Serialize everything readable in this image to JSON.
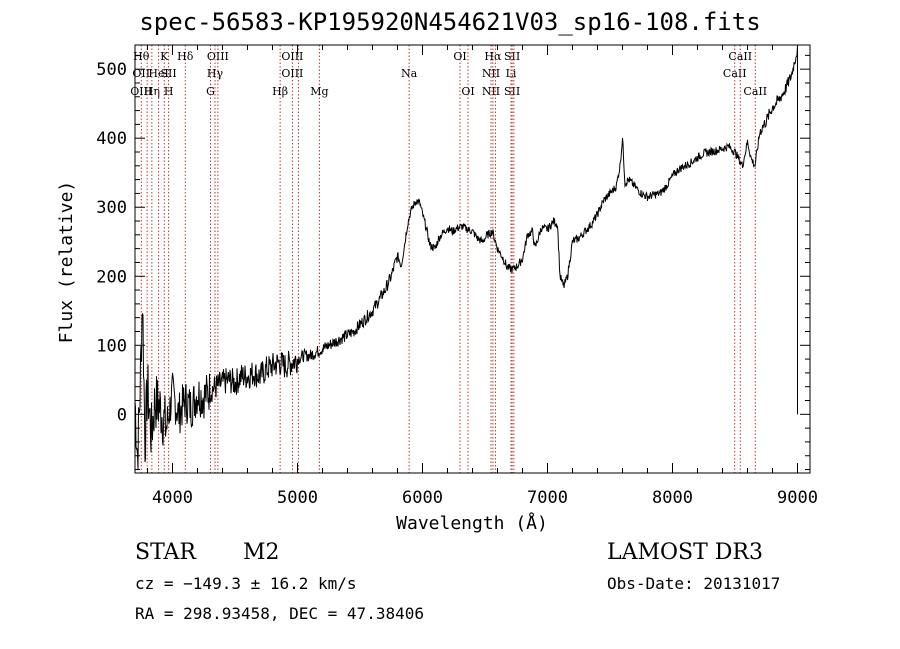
{
  "title": "spec-56583-KP195920N454621V03_sp16-108.fits",
  "info": {
    "class_label": "STAR",
    "subclass_label": "M2",
    "survey": "LAMOST DR3",
    "cz": "cz = −149.3 ± 16.2 km/s",
    "obs_date": "Obs-Date: 20131017",
    "coords": "RA = 298.93458, DEC =  47.38406"
  },
  "chart_data": {
    "type": "line",
    "title": "spec-56583-KP195920N454621V03_sp16-108.fits",
    "xlabel": "Wavelength (Å)",
    "ylabel": "Flux (relative)",
    "xlim": [
      3700,
      9100
    ],
    "ylim": [
      -85,
      535
    ],
    "xticks": [
      4000,
      5000,
      6000,
      7000,
      8000,
      9000
    ],
    "yticks": [
      0,
      100,
      200,
      300,
      400,
      500
    ],
    "series": [
      {
        "color": "#000000",
        "x": [
          3700,
          3720,
          3740,
          3760,
          3780,
          3800,
          3830,
          3860,
          3900,
          3950,
          4000,
          4050,
          4100,
          4150,
          4200,
          4250,
          4300,
          4350,
          4400,
          4450,
          4500,
          4550,
          4600,
          4650,
          4700,
          4750,
          4800,
          4850,
          4900,
          4950,
          5000,
          5050,
          5100,
          5150,
          5200,
          5250,
          5300,
          5350,
          5400,
          5450,
          5500,
          5550,
          5600,
          5650,
          5700,
          5750,
          5800,
          5830,
          5860,
          5880,
          5900,
          5920,
          5950,
          5980,
          6000,
          6030,
          6060,
          6100,
          6130,
          6160,
          6200,
          6240,
          6280,
          6320,
          6360,
          6400,
          6440,
          6480,
          6520,
          6560,
          6600,
          6640,
          6680,
          6720,
          6760,
          6800,
          6840,
          6880,
          6900,
          6950,
          7000,
          7050,
          7080,
          7100,
          7130,
          7160,
          7200,
          7250,
          7300,
          7350,
          7400,
          7450,
          7500,
          7550,
          7580,
          7600,
          7620,
          7650,
          7700,
          7750,
          7800,
          7850,
          7900,
          7950,
          8000,
          8050,
          8100,
          8150,
          8200,
          8250,
          8300,
          8350,
          8400,
          8450,
          8500,
          8530,
          8560,
          8600,
          8630,
          8660,
          8700,
          8750,
          8800,
          8850,
          8900,
          8950,
          9000
        ],
        "y": [
          20,
          -60,
          30,
          170,
          -40,
          40,
          -30,
          20,
          10,
          -20,
          30,
          0,
          20,
          10,
          30,
          25,
          35,
          40,
          45,
          50,
          45,
          55,
          55,
          60,
          55,
          65,
          70,
          75,
          70,
          75,
          80,
          85,
          85,
          90,
          95,
          100,
          105,
          110,
          115,
          120,
          130,
          140,
          150,
          165,
          180,
          200,
          230,
          215,
          250,
          275,
          290,
          300,
          310,
          305,
          290,
          270,
          245,
          240,
          255,
          262,
          270,
          265,
          270,
          272,
          268,
          265,
          255,
          250,
          260,
          265,
          240,
          228,
          212,
          210,
          215,
          225,
          260,
          265,
          240,
          270,
          268,
          280,
          275,
          200,
          185,
          200,
          250,
          255,
          265,
          275,
          290,
          310,
          320,
          330,
          360,
          400,
          335,
          340,
          330,
          320,
          315,
          318,
          320,
          330,
          345,
          355,
          360,
          365,
          372,
          378,
          380,
          382,
          385,
          388,
          380,
          370,
          360,
          395,
          370,
          360,
          410,
          425,
          445,
          455,
          470,
          490,
          530
        ]
      }
    ],
    "line_markers": [
      {
        "wl": 3750,
        "labels": [
          "Hθ",
          "OII",
          "OIII"
        ]
      },
      {
        "wl": 3797,
        "labels": [
          "",
          "",
          ""
        ]
      },
      {
        "wl": 3835,
        "labels": [
          "",
          "",
          "Hη"
        ]
      },
      {
        "wl": 3889,
        "labels": [
          "",
          "HeI",
          ""
        ]
      },
      {
        "wl": 3934,
        "labels": [
          "K",
          "",
          ""
        ]
      },
      {
        "wl": 3969,
        "labels": [
          "",
          "SII",
          "H"
        ]
      },
      {
        "wl": 4102,
        "labels": [
          "Hδ",
          "",
          ""
        ]
      },
      {
        "wl": 4304,
        "labels": [
          "",
          "",
          "G"
        ]
      },
      {
        "wl": 4340,
        "labels": [
          "",
          "Hγ",
          ""
        ]
      },
      {
        "wl": 4363,
        "labels": [
          "OIII",
          "",
          ""
        ]
      },
      {
        "wl": 4861,
        "labels": [
          "",
          "",
          "Hβ"
        ]
      },
      {
        "wl": 4959,
        "labels": [
          "OIII",
          "OIII",
          ""
        ]
      },
      {
        "wl": 5007,
        "labels": [
          "",
          "",
          ""
        ]
      },
      {
        "wl": 5175,
        "labels": [
          "",
          "",
          "Mg"
        ]
      },
      {
        "wl": 5893,
        "labels": [
          "",
          "Na",
          ""
        ]
      },
      {
        "wl": 6300,
        "labels": [
          "OI",
          "",
          ""
        ]
      },
      {
        "wl": 6364,
        "labels": [
          "",
          "",
          "OI"
        ]
      },
      {
        "wl": 6548,
        "labels": [
          "",
          "NII",
          "NII"
        ]
      },
      {
        "wl": 6563,
        "labels": [
          "Hα",
          "",
          ""
        ]
      },
      {
        "wl": 6583,
        "labels": [
          "",
          "",
          ""
        ]
      },
      {
        "wl": 6708,
        "labels": [
          "",
          "Li",
          ""
        ]
      },
      {
        "wl": 6717,
        "labels": [
          "SII",
          "",
          "SII"
        ]
      },
      {
        "wl": 6731,
        "labels": [
          "",
          "",
          ""
        ]
      },
      {
        "wl": 8498,
        "labels": [
          "",
          "CaII",
          ""
        ]
      },
      {
        "wl": 8542,
        "labels": [
          "CaII",
          "",
          ""
        ]
      },
      {
        "wl": 8662,
        "labels": [
          "",
          "",
          "CaII"
        ]
      }
    ]
  }
}
